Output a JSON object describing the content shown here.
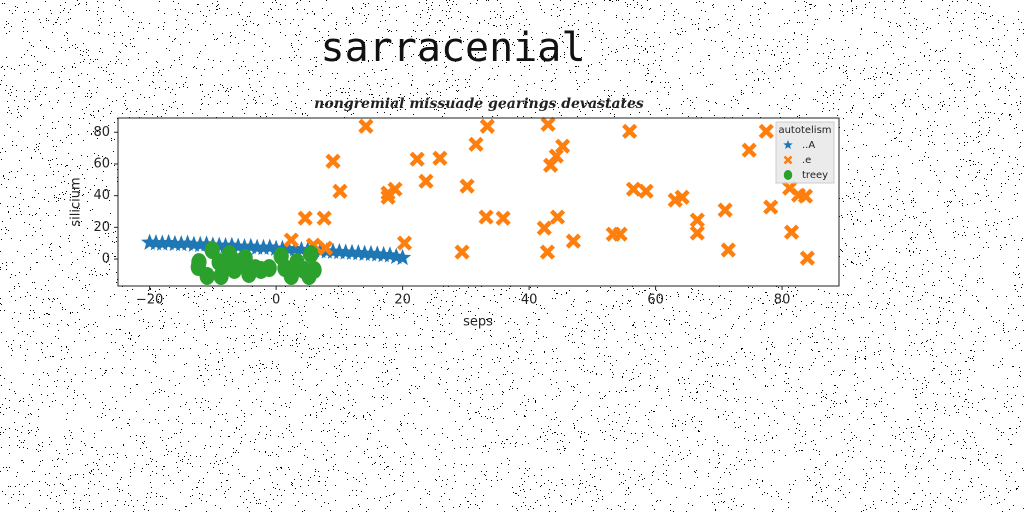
{
  "chart_data": {
    "type": "scatter",
    "title": "sarracenial",
    "subtitle": "nongremial missuade gearings devastates",
    "x_label": "seps",
    "y_label": "silicium",
    "xlim": [
      -25,
      89
    ],
    "ylim": [
      -17,
      89
    ],
    "xticks": [
      {
        "value": -20,
        "label": "−20"
      },
      0,
      20,
      40,
      60,
      80
    ],
    "yticks": [
      0,
      20,
      40,
      60,
      80
    ],
    "legend_title": "autotelism",
    "legend_loc": "upper right",
    "series": [
      {
        "name": "..A",
        "color": "#1f77b4",
        "marker": "star",
        "x": [
          -20,
          -19,
          -18,
          -17,
          -16,
          -15,
          -14,
          -13,
          -12,
          -11,
          -10,
          -9,
          -8,
          -7,
          -6,
          -5,
          -4,
          -3,
          -2,
          -1,
          0,
          1,
          2,
          3,
          4,
          5,
          6,
          7,
          8,
          9,
          10,
          11,
          12,
          13,
          14,
          15,
          16,
          17,
          18,
          19,
          20
        ],
        "y": [
          10.4,
          10.1,
          9.8,
          10.2,
          9.6,
          9.5,
          9.8,
          9.1,
          9.0,
          9.3,
          8.6,
          8.5,
          8.2,
          8.4,
          7.9,
          7.6,
          7.8,
          7.2,
          7.1,
          7.3,
          6.6,
          6.5,
          6.1,
          6.3,
          5.8,
          5.5,
          5.6,
          5.1,
          4.9,
          4.7,
          4.5,
          4.2,
          4.0,
          3.8,
          3.4,
          3.3,
          3.0,
          2.6,
          2.4,
          1.5,
          0.8
        ]
      },
      {
        "name": ".e",
        "color": "#ff7f0e",
        "marker": "x",
        "x": [
          14.2,
          33.4,
          43.0,
          55.9,
          77.5,
          9.0,
          22.3,
          25.9,
          31.6,
          45.3,
          44.3,
          43.4,
          74.8,
          23.7,
          30.2,
          10.1,
          17.7,
          18.8,
          17.7,
          56.5,
          58.5,
          63.1,
          64.2,
          81.2,
          82.6,
          83.7,
          78.2,
          71.0,
          4.6,
          7.6,
          33.2,
          35.9,
          44.5,
          42.4,
          66.6,
          66.6,
          53.3,
          54.4,
          81.5,
          2.4,
          20.3,
          47.0,
          5.9,
          7.8,
          29.4,
          42.9,
          71.5,
          84.0
        ],
        "y": [
          83.8,
          83.8,
          85,
          80.6,
          80.6,
          61.7,
          63,
          63.6,
          72.4,
          71.2,
          65,
          59.2,
          68.7,
          49.1,
          46,
          42.8,
          41.6,
          44.1,
          39,
          44.1,
          42.8,
          37.2,
          39,
          44.7,
          40.3,
          39.7,
          32.8,
          30.9,
          25.8,
          25.8,
          26.5,
          25.8,
          26.5,
          19.5,
          24.6,
          16.4,
          15.7,
          15.7,
          17,
          12,
          10.1,
          11.3,
          8.8,
          6.9,
          4.4,
          4.4,
          5.7,
          0.6
        ]
      },
      {
        "name": "treey",
        "color": "#2ca02c",
        "marker": "circle",
        "x": [
          -12.2,
          -12.3,
          -10.1,
          -9.0,
          -8.7,
          -7.4,
          -6.6,
          -5.9,
          -4.9,
          -4.3,
          -3.3,
          -2.4,
          -1.1,
          0.8,
          1.4,
          2.4,
          3.3,
          4.4,
          5.5,
          6.0,
          5.2,
          -10.9,
          -8.1
        ],
        "y": [
          -1.9,
          -5,
          5.7,
          -1.9,
          -10.7,
          3.1,
          -6.9,
          -1.9,
          0.6,
          -9.4,
          -5.7,
          -6.9,
          -5.7,
          1.9,
          -5.7,
          -10.7,
          -1.9,
          -6.9,
          3.1,
          -6.9,
          -10.7,
          -10.7,
          -4.4
        ]
      }
    ]
  }
}
